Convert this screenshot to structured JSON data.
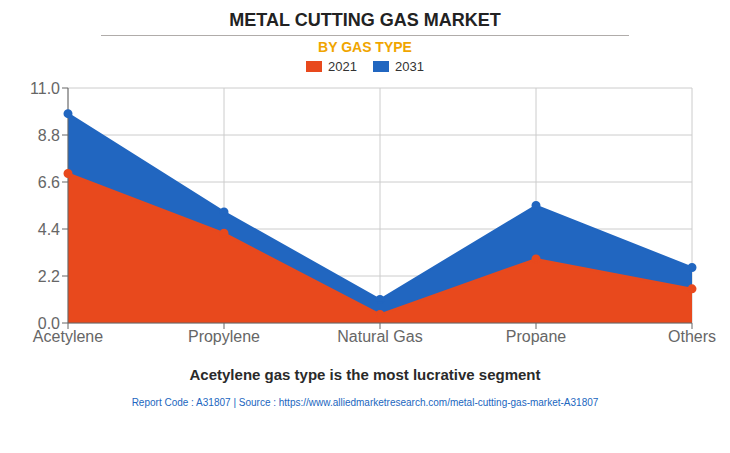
{
  "chart_data": {
    "type": "area",
    "title": "METAL CUTTING GAS MARKET",
    "subtitle": "BY GAS TYPE",
    "categories": [
      "Acetylene",
      "Propylene",
      "Natural Gas",
      "Propane",
      "Others"
    ],
    "series": [
      {
        "name": "2021",
        "color": "#e8491d",
        "marker": "circle",
        "values": [
          7.0,
          4.2,
          0.4,
          3.0,
          1.6
        ]
      },
      {
        "name": "2031",
        "color": "#2166c0",
        "marker": "circle",
        "values": [
          9.8,
          5.2,
          1.1,
          5.5,
          2.6
        ]
      }
    ],
    "ylim": [
      0,
      11
    ],
    "yticks": [
      {
        "value": 0,
        "label": "0.0"
      },
      2.2,
      4.4,
      6.6,
      8.8,
      {
        "value": 11,
        "label": "11.0"
      }
    ],
    "grid": true,
    "legend": "top",
    "annotations": [
      "Acetylene gas type is the most lucrative segment",
      "Report Code : A31807  |  Source : https://www.alliedmarketresearch.com/metal-cutting-gas-market-A31807"
    ]
  }
}
